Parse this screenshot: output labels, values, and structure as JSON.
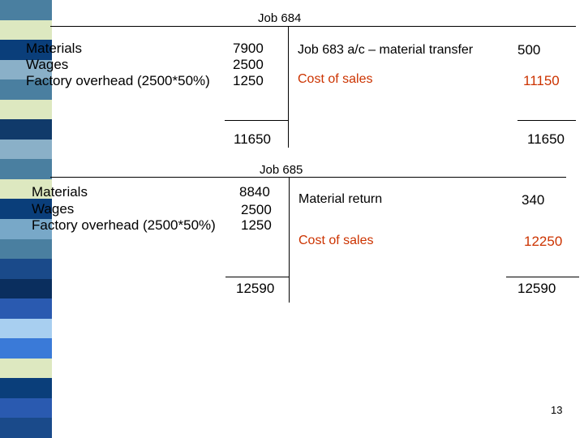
{
  "stripe_colors": [
    "#4a7fa0",
    "#dde8c0",
    "#0a3e7a",
    "#8ab0c8",
    "#4a7fa0",
    "#dde8c0",
    "#103a6a",
    "#8ab0c8",
    "#4a7fa0",
    "#dde8c0",
    "#0a3e7a",
    "#78a8c8",
    "#4a7fa0",
    "#1a4a8a",
    "#0a2e5e",
    "#2a5ab0",
    "#a8cff0",
    "#3a7ad8",
    "#dde8c0",
    "#0a3e7a",
    "#2a5ab0",
    "#1a4a8a"
  ],
  "job684": {
    "title": "Job 684",
    "debits": [
      {
        "label": "Materials",
        "amount": "7900"
      },
      {
        "label": "Wages",
        "amount": "2500"
      },
      {
        "label": "Factory overhead (2500*50%)",
        "amount": "1250"
      }
    ],
    "credits": [
      {
        "label": "Job 683 a/c – material transfer",
        "amount": "500"
      },
      {
        "label": "Cost of sales",
        "amount": "11150"
      }
    ],
    "debit_total": "11650",
    "credit_total": "11650"
  },
  "job685": {
    "title": "Job 685",
    "debits": [
      {
        "label": "Materials",
        "amount": "8840"
      },
      {
        "label": "Wages",
        "amount": "2500"
      },
      {
        "label": "Factory overhead (2500*50%)",
        "amount": "1250"
      }
    ],
    "credits": [
      {
        "label": "Material return",
        "amount": "340"
      },
      {
        "label": "Cost of sales",
        "amount": "12250"
      }
    ],
    "debit_total": "12590",
    "credit_total": "12590"
  },
  "page_number": "13"
}
